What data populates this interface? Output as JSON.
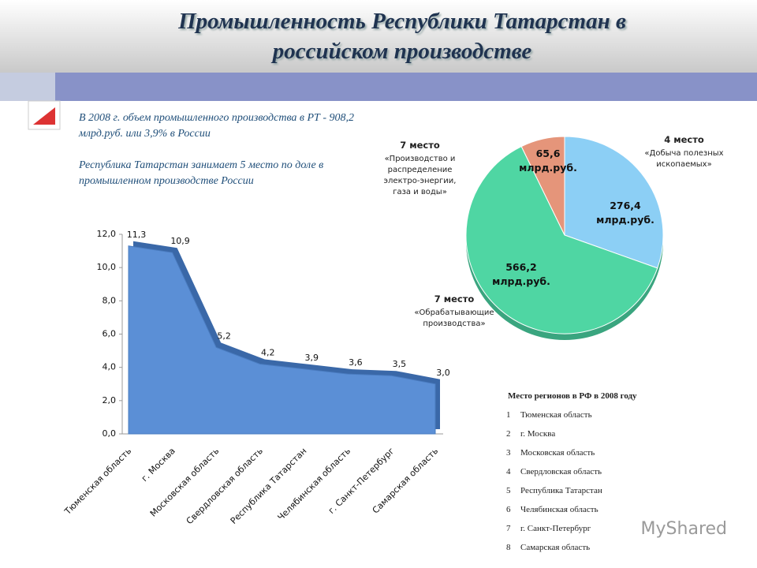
{
  "title": "Промышленность Республики Татарстан в российском производстве",
  "intro": [
    "В 2008 г. объем промышленного производства в РТ - 908,2 млрд.руб. или 3,9% в России",
    "Республика Татарстан занимает 5 место по доле в промышленном производстве России"
  ],
  "chart_data": [
    {
      "type": "area",
      "categories": [
        "Тюменская область",
        "г. Москва",
        "Московская область",
        "Свердловская область",
        "Республика Татарстан",
        "Челябинская область",
        "г. Санкт-Петербург",
        "Самарская область"
      ],
      "values": [
        11.3,
        10.9,
        5.2,
        4.2,
        3.9,
        3.6,
        3.5,
        3.0
      ],
      "value_labels": [
        "11,3",
        "10,9",
        "5,2",
        "4,2",
        "3,9",
        "3,6",
        "3,5",
        "3,0"
      ],
      "color": "#5b8fd6",
      "ylim": [
        0,
        12
      ],
      "yticks": [
        {
          "value": 0,
          "label": "0,0"
        },
        {
          "value": 2,
          "label": "2,0"
        },
        {
          "value": 4,
          "label": "4,0"
        },
        {
          "value": 6,
          "label": "6,0"
        },
        {
          "value": 8,
          "label": "8,0"
        },
        {
          "value": 10,
          "label": "10,0"
        },
        {
          "value": 12,
          "label": "12,0"
        }
      ]
    },
    {
      "type": "pie",
      "categories": [
        "«Добыча полезных ископаемых»",
        "«Обрабатывающие производства»",
        "«Производство и распределение электро-энергии, газа и воды»"
      ],
      "ranks": [
        "4 место",
        "7 место",
        "7 место"
      ],
      "values": [
        276.4,
        566.2,
        65.6
      ],
      "value_labels": [
        "276,4 млрд.руб.",
        "566,2 млрд.руб.",
        "65,6 млрд.руб."
      ],
      "colors": [
        "#8ccff5",
        "#4fd6a3",
        "#e5957a"
      ]
    }
  ],
  "ranking": {
    "title": "Место регионов в РФ в 2008 году",
    "items": [
      {
        "rank": 1,
        "name": "Тюменская область"
      },
      {
        "rank": 2,
        "name": "г. Москва"
      },
      {
        "rank": 3,
        "name": "Московская область"
      },
      {
        "rank": 4,
        "name": "Свердловская область"
      },
      {
        "rank": 5,
        "name": "Республика Татарстан"
      },
      {
        "rank": 6,
        "name": "Челябинская область"
      },
      {
        "rank": 7,
        "name": "г. Санкт-Петербург"
      },
      {
        "rank": 8,
        "name": "Самарская область"
      }
    ]
  },
  "watermark": "MyShared"
}
